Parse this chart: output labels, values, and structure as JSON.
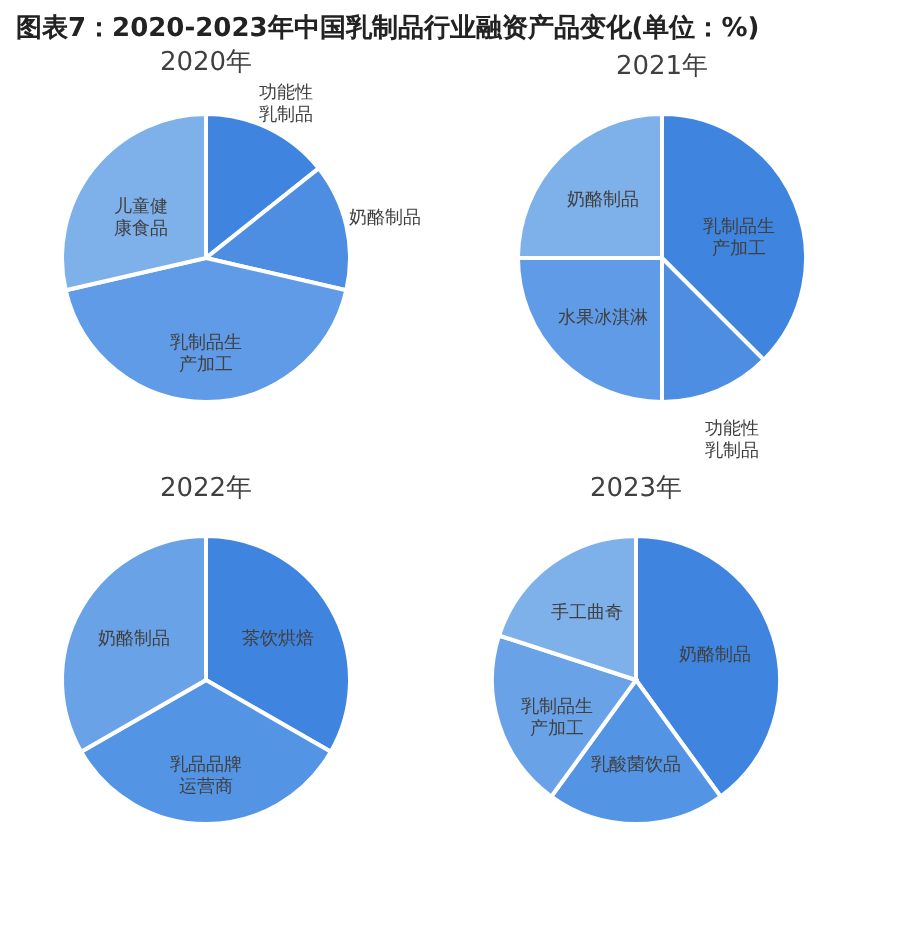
{
  "chart_data": [
    {
      "type": "pie",
      "title": "2020年",
      "annotations": [
        "图表7：2020-2023年中国乳制品行业融资产品变化(单位：%)"
      ],
      "categories": [
        "功能性乳制品",
        "奶酪制品",
        "乳制品生产加工",
        "儿童健康食品"
      ],
      "values": [
        14.3,
        14.3,
        42.8,
        28.6
      ],
      "colors": [
        "#3f84de",
        "#4d8de2",
        "#5f9be6",
        "#7eb0ea"
      ]
    },
    {
      "type": "pie",
      "title": "2021年",
      "categories": [
        "乳制品生产加工",
        "功能性乳制品",
        "水果冰淇淋",
        "奶酪制品"
      ],
      "values": [
        37.5,
        12.5,
        25,
        25
      ],
      "colors": [
        "#3f84de",
        "#4d8de2",
        "#5f9be6",
        "#7eb0ea"
      ]
    },
    {
      "type": "pie",
      "title": "2022年",
      "categories": [
        "茶饮烘焙",
        "乳品品牌运营商",
        "奶酪制品"
      ],
      "values": [
        33.3,
        33.4,
        33.3
      ],
      "colors": [
        "#3f84de",
        "#5394e4",
        "#6aa2e8"
      ]
    },
    {
      "type": "pie",
      "title": "2023年",
      "categories": [
        "奶酪制品",
        "乳酸菌饮品",
        "乳制品生产加工",
        "手工曲奇"
      ],
      "values": [
        40,
        20,
        20,
        20
      ],
      "colors": [
        "#3f84de",
        "#5394e4",
        "#6aa2e8",
        "#7eb0ea"
      ]
    }
  ]
}
